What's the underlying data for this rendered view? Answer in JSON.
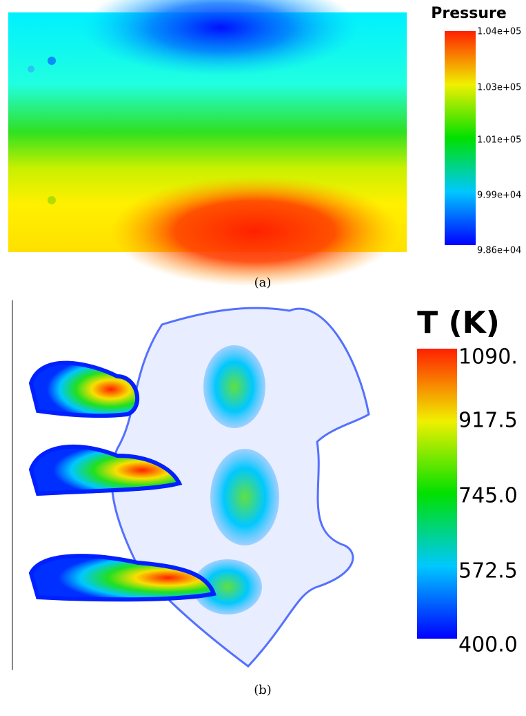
{
  "panels": [
    {
      "colorbar": {
        "title": "Pressure",
        "labels": [
          "1.04e+05",
          "1.03e+05",
          "1.01e+05",
          "9.99e+04",
          "9.86e+04"
        ]
      },
      "caption": "(a)"
    },
    {
      "colorbar": {
        "title": "T (K)",
        "labels": [
          "1090.",
          "917.5",
          "745.0",
          "572.5",
          "400.0"
        ]
      },
      "caption": "(b)"
    }
  ]
}
